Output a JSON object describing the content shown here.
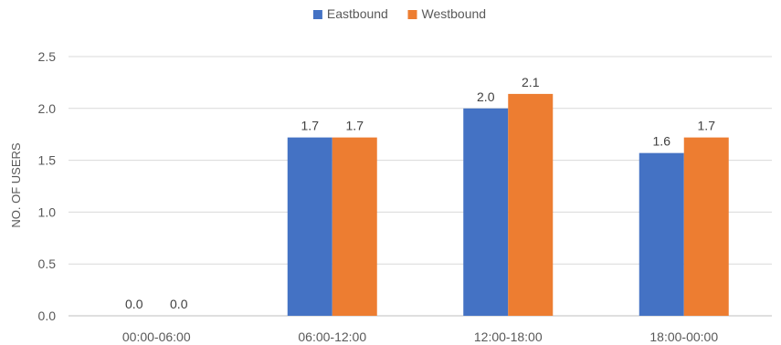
{
  "chart_data": {
    "type": "bar",
    "title": "",
    "xlabel": "",
    "ylabel": "NO. OF USERS",
    "ylim": [
      0,
      2.5
    ],
    "yticks": [
      "0.0",
      "0.5",
      "1.0",
      "1.5",
      "2.0",
      "2.5"
    ],
    "categories": [
      "00:00-06:00",
      "06:00-12:00",
      "12:00-18:00",
      "18:00-00:00"
    ],
    "series": [
      {
        "name": "Eastbound",
        "color": "#4472C4",
        "values": [
          0.0,
          1.72,
          2.0,
          1.57
        ],
        "labels": [
          "0.0",
          "1.7",
          "2.0",
          "1.6"
        ]
      },
      {
        "name": "Westbound",
        "color": "#ED7D31",
        "values": [
          0.0,
          1.72,
          2.14,
          1.72
        ],
        "labels": [
          "0.0",
          "1.7",
          "2.1",
          "1.7"
        ]
      }
    ],
    "grid": true,
    "legend_position": "top-center",
    "data_labels": true
  }
}
